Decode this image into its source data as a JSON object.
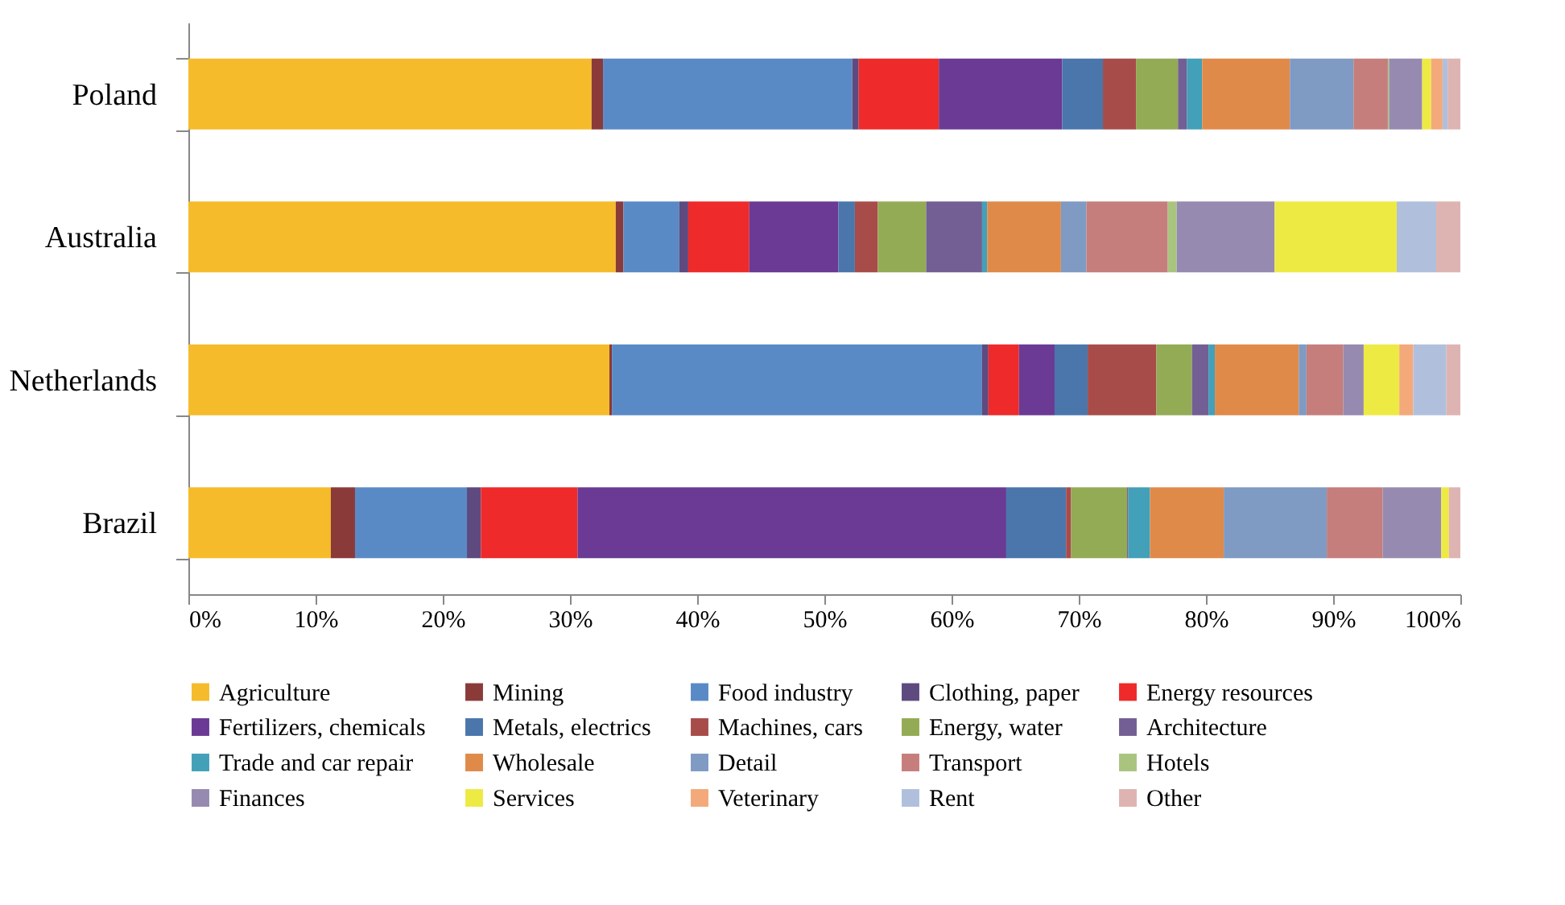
{
  "chart_data": {
    "type": "bar",
    "orientation": "horizontal",
    "stacked": true,
    "categories": [
      "Poland",
      "Australia",
      "Netherlands",
      "Brazil"
    ],
    "xlim": [
      0,
      100
    ],
    "xticks": [
      {
        "value": 0,
        "label": "0%"
      },
      {
        "value": 10,
        "label": "10%"
      },
      {
        "value": 20,
        "label": "20%"
      },
      {
        "value": 30,
        "label": "30%"
      },
      {
        "value": 40,
        "label": "40%"
      },
      {
        "value": 50,
        "label": "50%"
      },
      {
        "value": 60,
        "label": "60%"
      },
      {
        "value": 70,
        "label": "70%"
      },
      {
        "value": 80,
        "label": "80%"
      },
      {
        "value": 90,
        "label": "90%"
      },
      {
        "value": 100,
        "label": "100%"
      }
    ],
    "grid": false,
    "legend": "bottom",
    "series": [
      {
        "name": "Agriculture",
        "color": "#f5bb2a",
        "values": [
          31.7,
          33.6,
          33.1,
          11.2
        ]
      },
      {
        "name": "Mining",
        "color": "#8b3a3a",
        "values": [
          0.9,
          0.6,
          0.2,
          1.9
        ]
      },
      {
        "name": "Food industry",
        "color": "#5a8ac6",
        "values": [
          19.6,
          4.4,
          29.1,
          8.8
        ]
      },
      {
        "name": "Clothing, paper",
        "color": "#5e4a7e",
        "values": [
          0.5,
          0.7,
          0.5,
          1.1
        ]
      },
      {
        "name": "Energy resources",
        "color": "#ee2a2a",
        "values": [
          6.3,
          4.8,
          2.4,
          7.6
        ]
      },
      {
        "name": "Fertilizers, chemicals",
        "color": "#6a3a94",
        "values": [
          9.7,
          7.0,
          2.8,
          33.7
        ]
      },
      {
        "name": "Metals, electrics",
        "color": "#4a76ac",
        "values": [
          3.2,
          1.3,
          2.6,
          4.7
        ]
      },
      {
        "name": "Machines, cars",
        "color": "#a84c4a",
        "values": [
          2.6,
          1.8,
          5.4,
          0.4
        ]
      },
      {
        "name": "Energy, water",
        "color": "#93ab55",
        "values": [
          3.3,
          3.8,
          2.8,
          4.4
        ]
      },
      {
        "name": "Architecture",
        "color": "#735f93",
        "values": [
          0.7,
          4.4,
          1.3,
          0.1
        ]
      },
      {
        "name": "Trade and car repair",
        "color": "#42a0b8",
        "values": [
          1.2,
          0.4,
          0.5,
          1.7
        ]
      },
      {
        "name": "Wholesale",
        "color": "#e08a4a",
        "values": [
          6.9,
          5.8,
          6.6,
          5.8
        ]
      },
      {
        "name": "Detail",
        "color": "#7f9ac3",
        "values": [
          5.0,
          2.0,
          0.6,
          8.1
        ]
      },
      {
        "name": "Transport",
        "color": "#c57e7c",
        "values": [
          2.7,
          6.4,
          2.9,
          4.4
        ]
      },
      {
        "name": "Hotels",
        "color": "#a9c47f",
        "values": [
          0.1,
          0.7,
          0,
          0
        ]
      },
      {
        "name": "Finances",
        "color": "#978ab0",
        "values": [
          2.6,
          7.7,
          1.6,
          4.6
        ]
      },
      {
        "name": "Services",
        "color": "#eeea44",
        "values": [
          0.7,
          9.6,
          2.8,
          0.6
        ]
      },
      {
        "name": "Veterinary",
        "color": "#f4a97a",
        "values": [
          0.9,
          0,
          1.1,
          0
        ]
      },
      {
        "name": "Rent",
        "color": "#b0c0dc",
        "values": [
          0.4,
          3.1,
          2.6,
          0
        ]
      },
      {
        "name": "Other",
        "color": "#deb4b2",
        "values": [
          1.0,
          1.9,
          1.1,
          0.9
        ]
      }
    ]
  }
}
